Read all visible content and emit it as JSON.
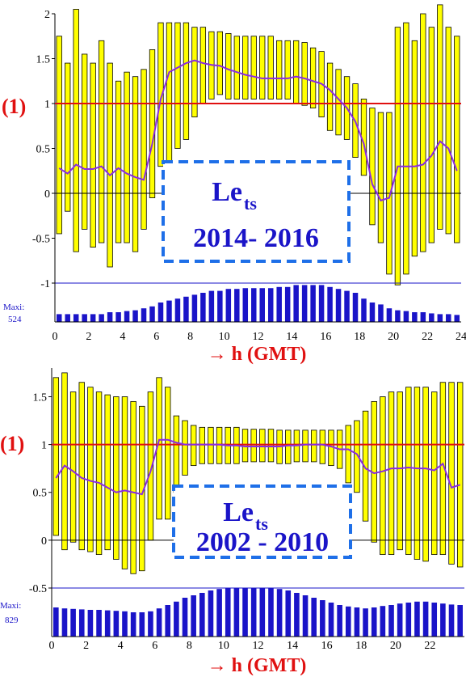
{
  "colors": {
    "bar": "#ffff00",
    "bar_stroke": "#000000",
    "mean": "#8a2be2",
    "reference": "#e01010",
    "count": "#1a14c8",
    "box": "#1e6fe8",
    "text_blue": "#1a14c8",
    "text_red": "#e01010"
  },
  "chart_data": [
    {
      "type": "bar",
      "annotation": "(1)",
      "box_title": "Le",
      "box_subscript": "ts",
      "box_years": "2014- 2016",
      "xlabel": "→ h (GMT)",
      "maxi_label": "Maxi:",
      "maxi_value": "524",
      "x_ticks": [
        "0",
        "2",
        "4",
        "6",
        "8",
        "10",
        "12",
        "14",
        "16",
        "18",
        "20",
        "22",
        "24"
      ],
      "y_ticks": [
        "-1",
        "-0.5",
        "0",
        "0.5",
        "1",
        "1.5",
        "2"
      ],
      "xlim": [
        0,
        24
      ],
      "ylim": [
        -1,
        2
      ],
      "reference_line": 1,
      "hours": [
        0.25,
        0.75,
        1.25,
        1.75,
        2.25,
        2.75,
        3.25,
        3.75,
        4.25,
        4.75,
        5.25,
        5.75,
        6.25,
        6.75,
        7.25,
        7.75,
        8.25,
        8.75,
        9.25,
        9.75,
        10.25,
        10.75,
        11.25,
        11.75,
        12.25,
        12.75,
        13.25,
        13.75,
        14.25,
        14.75,
        15.25,
        15.75,
        16.25,
        16.75,
        17.25,
        17.75,
        18.25,
        18.75,
        19.25,
        19.75,
        20.25,
        20.75,
        21.25,
        21.75,
        22.25,
        22.75,
        23.25,
        23.75
      ],
      "bar_low": [
        -0.45,
        -0.2,
        -0.65,
        -0.4,
        -0.6,
        -0.55,
        -0.82,
        -0.55,
        -0.55,
        -0.65,
        -0.4,
        -0.05,
        0.3,
        0.3,
        0.5,
        0.6,
        0.85,
        1.0,
        1.05,
        1.1,
        1.05,
        1.05,
        1.05,
        1.05,
        1.05,
        1.05,
        1.05,
        1.05,
        1.0,
        0.98,
        0.95,
        0.85,
        0.7,
        0.65,
        0.6,
        0.4,
        0.2,
        -0.35,
        -0.55,
        -0.9,
        -1.02,
        -0.9,
        -0.7,
        -0.65,
        -0.55,
        -0.4,
        -0.45,
        -0.55
      ],
      "bar_high": [
        1.75,
        1.45,
        2.05,
        1.55,
        1.45,
        1.7,
        1.45,
        1.25,
        1.35,
        1.3,
        1.38,
        1.6,
        1.9,
        1.9,
        1.9,
        1.9,
        1.85,
        1.85,
        1.8,
        1.8,
        1.78,
        1.75,
        1.75,
        1.75,
        1.75,
        1.75,
        1.7,
        1.7,
        1.7,
        1.68,
        1.62,
        1.58,
        1.45,
        1.38,
        1.3,
        1.22,
        1.05,
        0.95,
        0.9,
        0.9,
        1.85,
        1.9,
        1.7,
        2.0,
        1.85,
        2.1,
        1.85,
        1.75
      ],
      "mean": [
        0.28,
        0.22,
        0.32,
        0.27,
        0.27,
        0.3,
        0.2,
        0.28,
        0.22,
        0.18,
        0.15,
        0.55,
        1.05,
        1.35,
        1.4,
        1.45,
        1.48,
        1.45,
        1.43,
        1.42,
        1.38,
        1.35,
        1.32,
        1.3,
        1.28,
        1.28,
        1.28,
        1.28,
        1.3,
        1.28,
        1.25,
        1.22,
        1.15,
        1.05,
        0.95,
        0.8,
        0.55,
        0.1,
        -0.08,
        -0.05,
        0.3,
        0.3,
        0.3,
        0.32,
        0.42,
        0.58,
        0.5,
        0.25
      ],
      "counts": [
        0.2,
        0.2,
        0.2,
        0.2,
        0.2,
        0.2,
        0.25,
        0.25,
        0.28,
        0.3,
        0.35,
        0.4,
        0.5,
        0.55,
        0.6,
        0.65,
        0.7,
        0.75,
        0.8,
        0.8,
        0.85,
        0.85,
        0.87,
        0.87,
        0.87,
        0.87,
        0.9,
        0.9,
        0.95,
        0.95,
        0.95,
        0.95,
        0.9,
        0.85,
        0.8,
        0.75,
        0.6,
        0.5,
        0.45,
        0.35,
        0.3,
        0.28,
        0.25,
        0.25,
        0.22,
        0.2,
        0.2,
        0.18
      ]
    },
    {
      "type": "bar",
      "annotation": "(1)",
      "box_title": "Le",
      "box_subscript": "ts",
      "box_years": "2002 - 2010",
      "xlabel": "→ h (GMT)",
      "maxi_label": "Maxi:",
      "maxi_value": "829",
      "x_ticks": [
        "0",
        "2",
        "4",
        "6",
        "8",
        "10",
        "12",
        "14",
        "16",
        "18",
        "20",
        "22"
      ],
      "y_ticks": [
        "-0.5",
        "0",
        "0.5",
        "1",
        "1.5"
      ],
      "xlim": [
        0,
        24
      ],
      "ylim": [
        -0.5,
        1.8
      ],
      "reference_line": 1,
      "hours": [
        0.25,
        0.75,
        1.25,
        1.75,
        2.25,
        2.75,
        3.25,
        3.75,
        4.25,
        4.75,
        5.25,
        5.75,
        6.25,
        6.75,
        7.25,
        7.75,
        8.25,
        8.75,
        9.25,
        9.75,
        10.25,
        10.75,
        11.25,
        11.75,
        12.25,
        12.75,
        13.25,
        13.75,
        14.25,
        14.75,
        15.25,
        15.75,
        16.25,
        16.75,
        17.25,
        17.75,
        18.25,
        18.75,
        19.25,
        19.75,
        20.25,
        20.75,
        21.25,
        21.75,
        22.25,
        22.75,
        23.25,
        23.75
      ],
      "bar_low": [
        0.05,
        -0.1,
        -0.02,
        -0.1,
        -0.12,
        -0.15,
        -0.1,
        -0.2,
        -0.3,
        -0.35,
        -0.32,
        0.0,
        0.22,
        0.22,
        0.5,
        0.68,
        0.78,
        0.8,
        0.8,
        0.8,
        0.8,
        0.8,
        0.82,
        0.82,
        0.82,
        0.82,
        0.8,
        0.8,
        0.82,
        0.82,
        0.82,
        0.8,
        0.78,
        0.75,
        0.6,
        0.5,
        0.2,
        -0.02,
        -0.15,
        -0.15,
        -0.1,
        -0.15,
        -0.2,
        -0.22,
        -0.15,
        -0.15,
        -0.25,
        -0.28
      ],
      "bar_high": [
        1.7,
        1.75,
        1.55,
        1.65,
        1.6,
        1.55,
        1.52,
        1.5,
        1.5,
        1.45,
        1.4,
        1.55,
        1.7,
        1.6,
        1.3,
        1.25,
        1.2,
        1.18,
        1.18,
        1.18,
        1.18,
        1.18,
        1.16,
        1.16,
        1.16,
        1.16,
        1.15,
        1.15,
        1.15,
        1.15,
        1.15,
        1.15,
        1.15,
        1.15,
        1.2,
        1.25,
        1.35,
        1.45,
        1.5,
        1.55,
        1.55,
        1.6,
        1.6,
        1.6,
        1.55,
        1.65,
        1.65,
        1.65
      ],
      "mean": [
        0.65,
        0.78,
        0.72,
        0.65,
        0.62,
        0.6,
        0.55,
        0.5,
        0.52,
        0.5,
        0.48,
        0.72,
        1.05,
        1.05,
        1.02,
        1.0,
        1.0,
        1.0,
        1.0,
        1.0,
        0.99,
        0.99,
        0.98,
        0.98,
        0.98,
        0.98,
        0.98,
        0.99,
        0.99,
        1.0,
        1.0,
        1.0,
        0.98,
        0.95,
        0.95,
        0.9,
        0.75,
        0.7,
        0.72,
        0.75,
        0.75,
        0.76,
        0.75,
        0.75,
        0.73,
        0.8,
        0.55,
        0.58
      ],
      "counts": [
        0.6,
        0.58,
        0.57,
        0.56,
        0.55,
        0.55,
        0.54,
        0.53,
        0.52,
        0.5,
        0.5,
        0.52,
        0.58,
        0.65,
        0.72,
        0.8,
        0.85,
        0.9,
        0.95,
        0.98,
        1.0,
        1.0,
        1.0,
        1.0,
        1.0,
        1.0,
        0.98,
        0.95,
        0.9,
        0.85,
        0.8,
        0.75,
        0.7,
        0.65,
        0.62,
        0.6,
        0.58,
        0.6,
        0.63,
        0.65,
        0.68,
        0.7,
        0.72,
        0.72,
        0.7,
        0.68,
        0.66,
        0.65
      ]
    }
  ]
}
